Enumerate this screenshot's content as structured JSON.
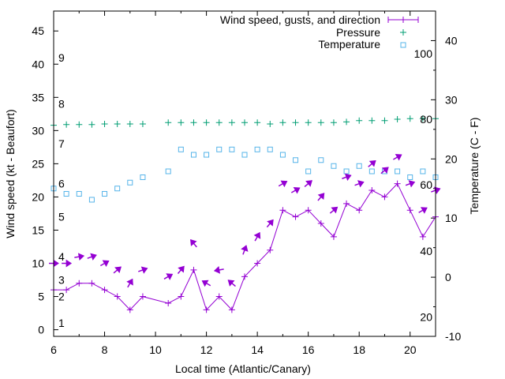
{
  "chart_data": {
    "type": "line",
    "xlabel": "Local time (Atlantic/Canary)",
    "ylabel": "Wind speed (kt - Beaufort)",
    "y2label": "Temperature (C - F)",
    "xlim": [
      6,
      21
    ],
    "ylim": [
      -1,
      48
    ],
    "y2lim": [
      -10,
      45
    ],
    "xticks": [
      6,
      8,
      10,
      12,
      14,
      16,
      18,
      20
    ],
    "yticks": [
      0,
      5,
      10,
      15,
      20,
      25,
      30,
      35,
      40,
      45
    ],
    "y2ticks": [
      -10,
      0,
      10,
      20,
      30,
      40
    ],
    "beaufort_labels": [
      {
        "label": "1",
        "y": 1.0
      },
      {
        "label": "2",
        "y": 5.0
      },
      {
        "label": "3",
        "y": 7.5
      },
      {
        "label": "4",
        "y": 11.0
      },
      {
        "label": "5",
        "y": 17.0
      },
      {
        "label": "6",
        "y": 22.0
      },
      {
        "label": "7",
        "y": 28.0
      },
      {
        "label": "8",
        "y": 34.0
      },
      {
        "label": "9",
        "y": 41.0
      }
    ],
    "fahrenheit_labels": [
      {
        "label": "20",
        "t": -6.7
      },
      {
        "label": "40",
        "t": 4.4
      },
      {
        "label": "60",
        "t": 15.6
      },
      {
        "label": "80",
        "t": 26.7
      },
      {
        "label": "100",
        "t": 37.8
      }
    ],
    "legend": {
      "placement": "top-right",
      "entries": [
        "Wind speed, gusts, and direction",
        "Pressure",
        "Temperature"
      ]
    },
    "colors": {
      "wind": "#9400d3",
      "pressure": "#009e73",
      "temperature": "#56b4e9"
    },
    "series": [
      {
        "name": "Wind speed, gusts, and direction",
        "x": [
          6,
          6.5,
          7,
          7.5,
          8,
          8.5,
          9,
          9.5,
          10.5,
          11,
          11.5,
          12,
          12.5,
          13,
          13.5,
          14,
          14.5,
          15,
          15.5,
          16,
          16.5,
          17,
          17.5,
          18,
          18.5,
          19,
          19.5,
          20,
          20.5,
          21
        ],
        "values": [
          6,
          6,
          7,
          7,
          6,
          5,
          3,
          5,
          4,
          5,
          9,
          3,
          5,
          3,
          8,
          10,
          12,
          18,
          17,
          18,
          16,
          14,
          19,
          18,
          21,
          20,
          22,
          18,
          14,
          17
        ],
        "direction_deg": [
          270,
          270,
          260,
          250,
          240,
          230,
          210,
          250,
          240,
          220,
          140,
          120,
          80,
          130,
          200,
          210,
          220,
          240,
          240,
          230,
          220,
          230,
          250,
          250,
          230,
          230,
          240,
          250,
          240,
          250
        ]
      },
      {
        "name": "Pressure",
        "x": [
          6,
          6.5,
          7,
          7.5,
          8,
          8.5,
          9,
          9.5,
          10.5,
          11,
          11.5,
          12,
          12.5,
          13,
          13.5,
          14,
          14.5,
          15,
          15.5,
          16,
          16.5,
          17,
          17.5,
          18,
          18.5,
          19,
          19.5,
          20,
          20.5,
          21
        ],
        "values": [
          30.8,
          30.9,
          30.9,
          30.9,
          31.0,
          31.0,
          31.0,
          31.0,
          31.2,
          31.2,
          31.2,
          31.2,
          31.2,
          31.2,
          31.2,
          31.2,
          31.0,
          31.2,
          31.2,
          31.2,
          31.2,
          31.2,
          31.3,
          31.5,
          31.5,
          31.5,
          31.7,
          31.8,
          31.8,
          31.8
        ]
      },
      {
        "name": "Temperature",
        "x": [
          6,
          6.5,
          7,
          7.5,
          8,
          8.5,
          9,
          9.5,
          10.5,
          11,
          11.5,
          12,
          12.5,
          13,
          13.5,
          14,
          14.5,
          15,
          15.5,
          16,
          16.5,
          17,
          17.5,
          18,
          18.5,
          19,
          19.5,
          20,
          20.5,
          21
        ],
        "values": [
          15,
          14.1,
          14.1,
          13.1,
          14.1,
          15.0,
          16.0,
          16.9,
          17.9,
          21.6,
          20.7,
          20.7,
          21.6,
          21.6,
          20.7,
          21.6,
          21.6,
          20.7,
          19.8,
          17.9,
          19.8,
          18.8,
          17.9,
          18.8,
          17.9,
          17.9,
          17.9,
          16.9,
          17.9,
          16.9
        ]
      }
    ]
  }
}
